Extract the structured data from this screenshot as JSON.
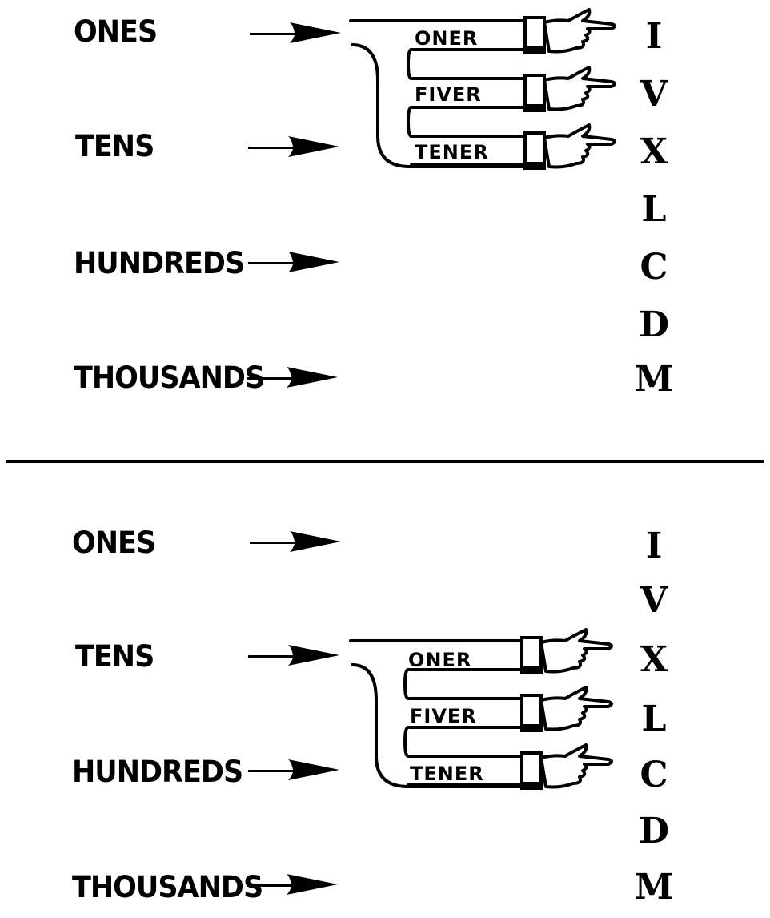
{
  "panels": [
    {
      "places": [
        "ONES",
        "TENS",
        "HUNDREDS",
        "THOUSANDS"
      ],
      "numerals": [
        "I",
        "V",
        "X",
        "L",
        "C",
        "D",
        "M"
      ],
      "fingers": [
        "ONER",
        "FIVER",
        "TENER"
      ]
    },
    {
      "places": [
        "ONES",
        "TENS",
        "HUNDREDS",
        "THOUSANDS"
      ],
      "numerals": [
        "I",
        "V",
        "X",
        "L",
        "C",
        "D",
        "M"
      ],
      "fingers": [
        "ONER",
        "FIVER",
        "TENER"
      ]
    }
  ],
  "colors": {
    "ink": "#000000",
    "paper": "#ffffff"
  }
}
